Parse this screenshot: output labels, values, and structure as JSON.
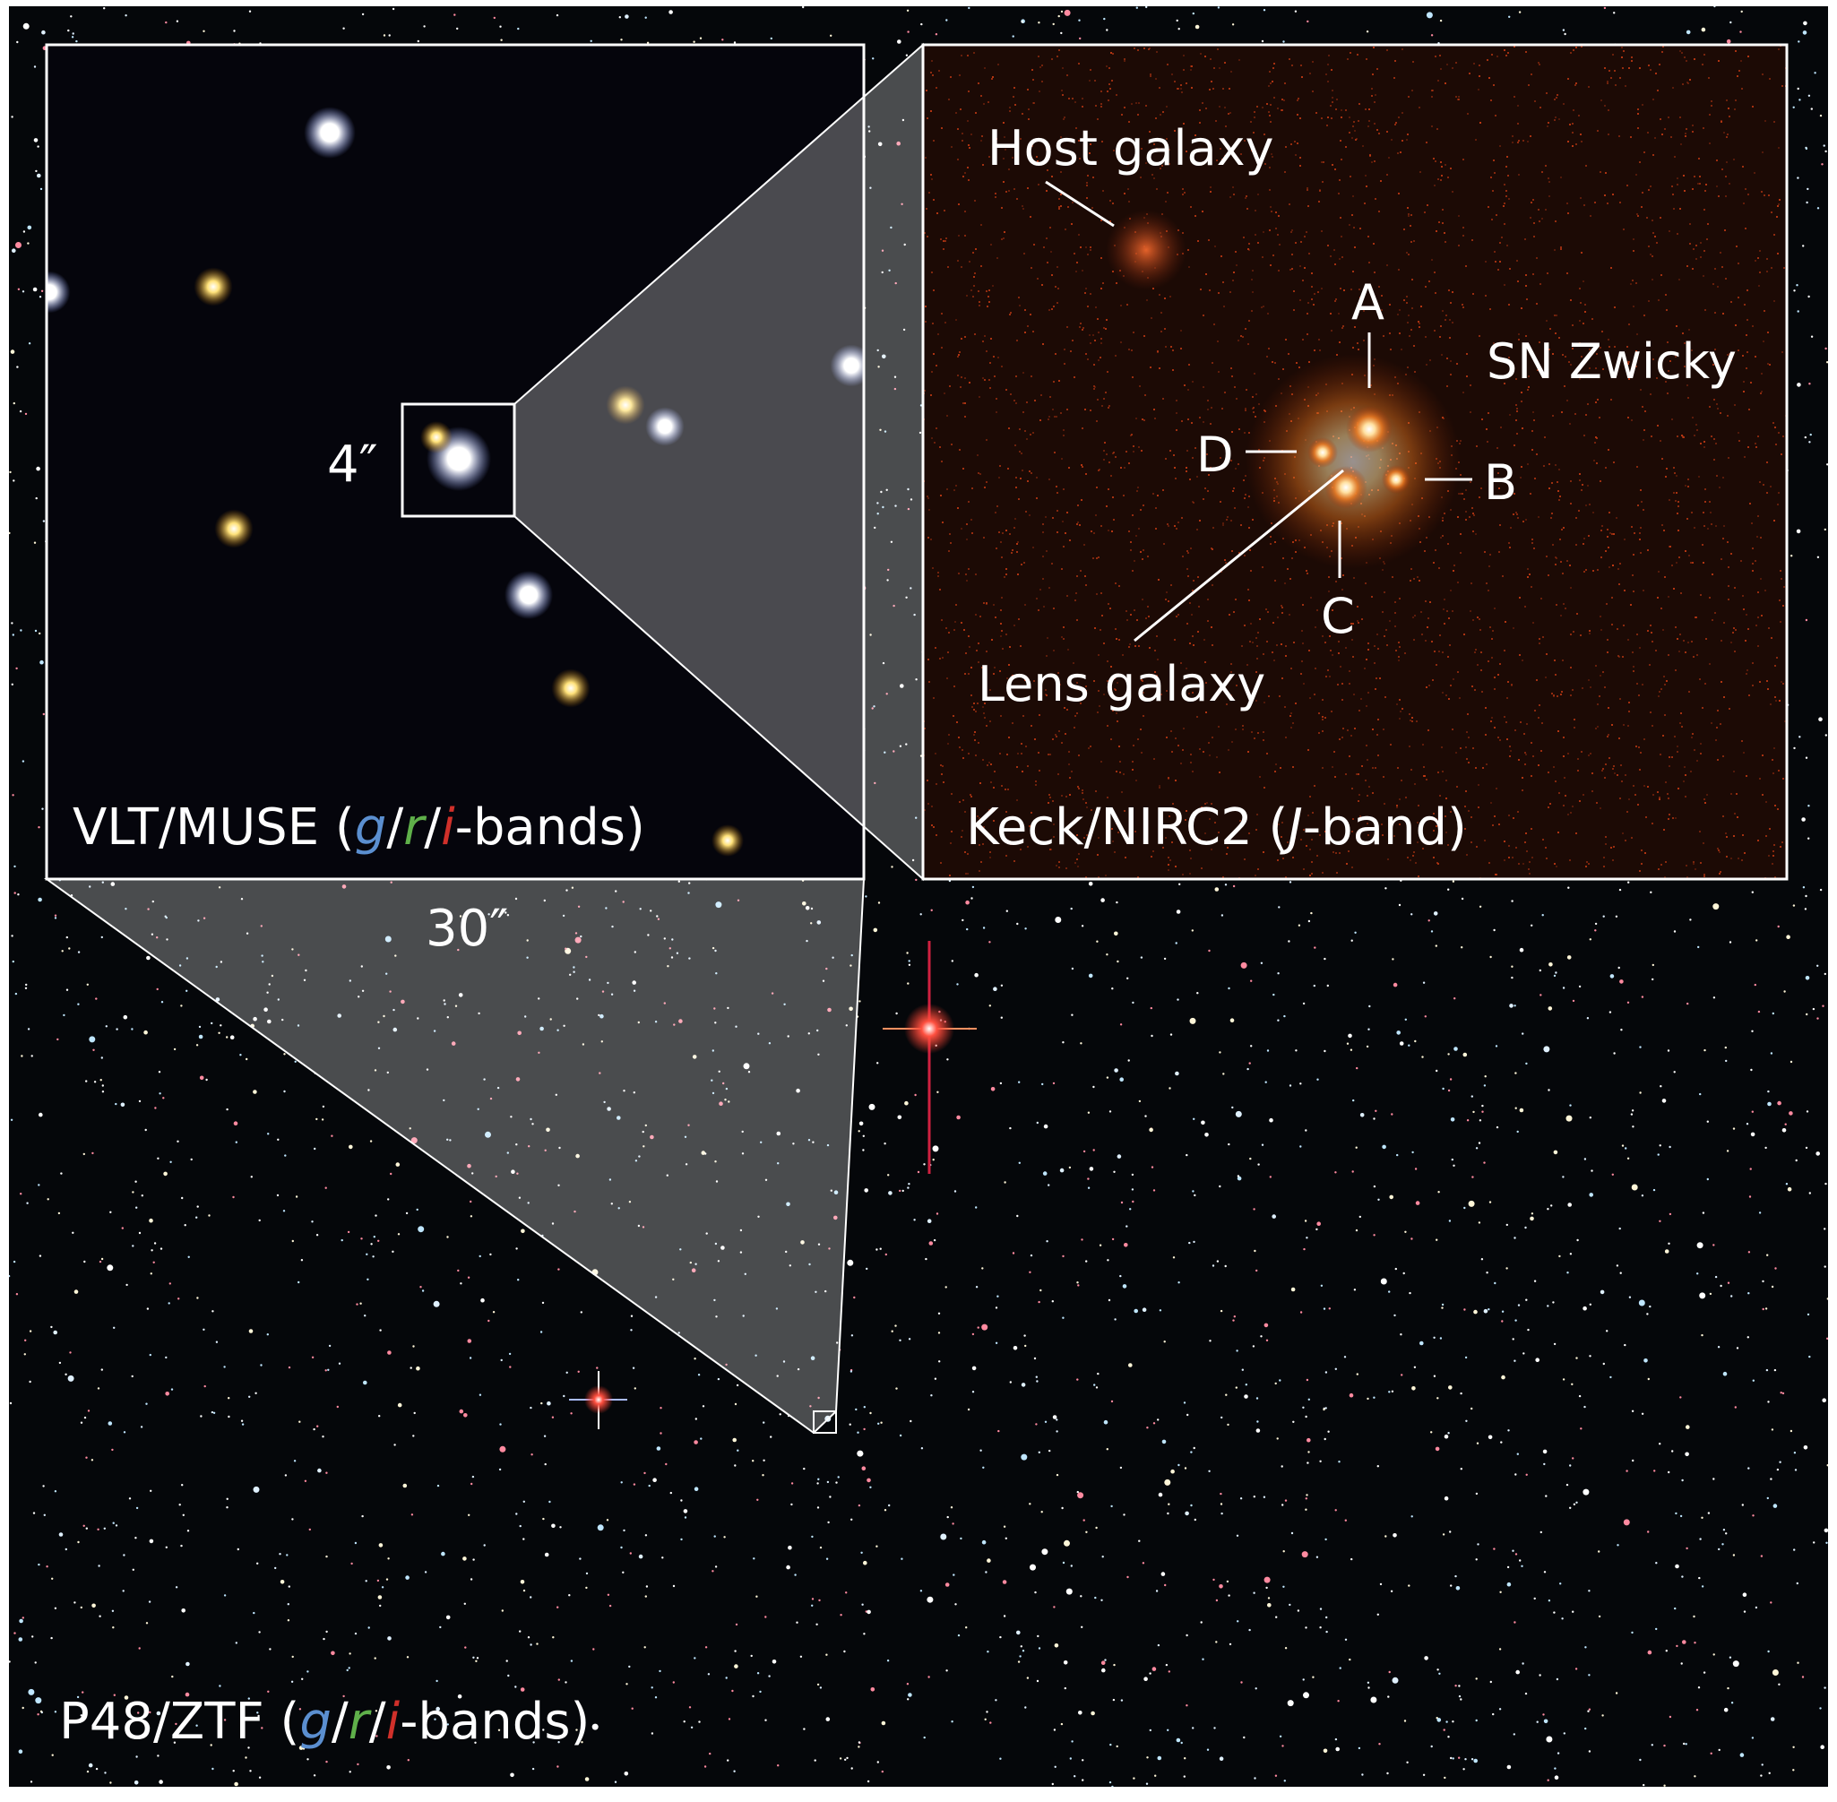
{
  "figure": {
    "background_field": {
      "label_prefix": "P48/ZTF (",
      "band_g": "g",
      "sep1": "/",
      "band_r": "r",
      "sep2": "/",
      "band_i": "i",
      "label_suffix": "-bands)"
    },
    "left_panel": {
      "label_prefix": "VLT/MUSE (",
      "band_g": "g",
      "sep1": "/",
      "band_r": "r",
      "sep2": "/",
      "band_i": "i",
      "label_suffix": "-bands)",
      "scale_label": "30″",
      "box_label": "4″"
    },
    "right_panel": {
      "label_prefix": "Keck/NIRC2 (",
      "band": "J",
      "label_suffix": "-band)",
      "host_label": "Host galaxy",
      "sn_label": "SN Zwicky",
      "lens_label": "Lens galaxy",
      "images": [
        "A",
        "B",
        "C",
        "D"
      ]
    },
    "colors": {
      "g_band": "#5b8fd0",
      "r_band": "#5fb04a",
      "i_band": "#d0302a",
      "keck_bg": "#1c0a05",
      "border": "#ffffff"
    }
  }
}
